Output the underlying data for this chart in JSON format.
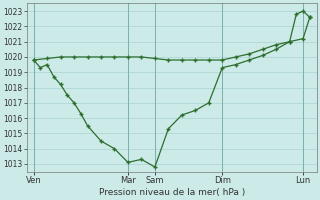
{
  "background_color": "#cceae8",
  "grid_color": "#aad4d0",
  "line_color": "#2d6e2d",
  "xlabel": "Pression niveau de la mer( hPa )",
  "ylim": [
    1012.5,
    1023.5
  ],
  "yticks": [
    1013,
    1014,
    1015,
    1016,
    1017,
    1018,
    1019,
    1020,
    1021,
    1022,
    1023
  ],
  "x_day_labels": [
    "Ven",
    "Mar",
    "Sam",
    "Dim",
    "Lun"
  ],
  "x_day_positions": [
    0,
    14,
    18,
    28,
    40
  ],
  "xlim": [
    -1,
    42
  ],
  "line1_x": [
    0,
    2,
    4,
    6,
    8,
    10,
    12,
    14,
    16,
    18,
    20,
    22,
    24,
    26,
    28,
    30,
    32,
    34,
    36,
    38,
    40,
    41
  ],
  "line1_y": [
    1019.8,
    1019.9,
    1020.0,
    1020.0,
    1020.0,
    1020.0,
    1020.0,
    1020.0,
    1020.0,
    1019.9,
    1019.8,
    1019.8,
    1019.8,
    1019.8,
    1019.8,
    1020.0,
    1020.2,
    1020.5,
    1020.8,
    1021.0,
    1021.2,
    1022.6
  ],
  "line2_x": [
    0,
    1,
    2,
    3,
    4,
    5,
    6,
    7,
    8,
    10,
    12,
    14,
    16,
    18,
    20,
    22,
    24,
    26,
    28,
    30,
    32,
    34,
    36,
    38,
    39,
    40,
    41
  ],
  "line2_y": [
    1019.8,
    1019.3,
    1019.5,
    1018.7,
    1018.2,
    1017.5,
    1017.0,
    1016.3,
    1015.5,
    1014.5,
    1014.0,
    1013.1,
    1013.3,
    1012.8,
    1015.3,
    1016.2,
    1016.5,
    1017.0,
    1019.3,
    1019.5,
    1019.8,
    1020.1,
    1020.5,
    1021.0,
    1022.8,
    1023.0,
    1022.6
  ]
}
